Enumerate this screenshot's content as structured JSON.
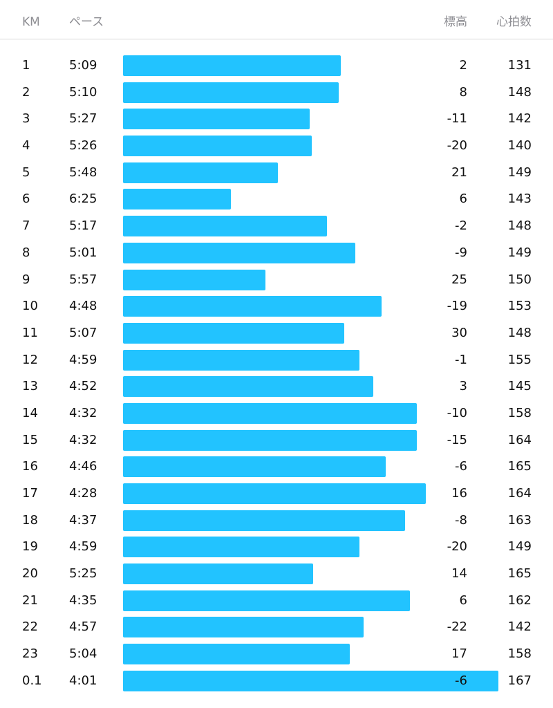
{
  "header": {
    "km": "KM",
    "pace": "ペース",
    "elevation": "標高",
    "heart_rate": "心拍数"
  },
  "bar_color": "#22c3ff",
  "splits": [
    {
      "km": "1",
      "pace": "5:09",
      "elevation": "2",
      "hr": "131"
    },
    {
      "km": "2",
      "pace": "5:10",
      "elevation": "8",
      "hr": "148"
    },
    {
      "km": "3",
      "pace": "5:27",
      "elevation": "-11",
      "hr": "142"
    },
    {
      "km": "4",
      "pace": "5:26",
      "elevation": "-20",
      "hr": "140"
    },
    {
      "km": "5",
      "pace": "5:48",
      "elevation": "21",
      "hr": "149"
    },
    {
      "km": "6",
      "pace": "6:25",
      "elevation": "6",
      "hr": "143"
    },
    {
      "km": "7",
      "pace": "5:17",
      "elevation": "-2",
      "hr": "148"
    },
    {
      "km": "8",
      "pace": "5:01",
      "elevation": "-9",
      "hr": "149"
    },
    {
      "km": "9",
      "pace": "5:57",
      "elevation": "25",
      "hr": "150"
    },
    {
      "km": "10",
      "pace": "4:48",
      "elevation": "-19",
      "hr": "153"
    },
    {
      "km": "11",
      "pace": "5:07",
      "elevation": "30",
      "hr": "148"
    },
    {
      "km": "12",
      "pace": "4:59",
      "elevation": "-1",
      "hr": "155"
    },
    {
      "km": "13",
      "pace": "4:52",
      "elevation": "3",
      "hr": "145"
    },
    {
      "km": "14",
      "pace": "4:32",
      "elevation": "-10",
      "hr": "158"
    },
    {
      "km": "15",
      "pace": "4:32",
      "elevation": "-15",
      "hr": "164"
    },
    {
      "km": "16",
      "pace": "4:46",
      "elevation": "-6",
      "hr": "165"
    },
    {
      "km": "17",
      "pace": "4:28",
      "elevation": "16",
      "hr": "164"
    },
    {
      "km": "18",
      "pace": "4:37",
      "elevation": "-8",
      "hr": "163"
    },
    {
      "km": "19",
      "pace": "4:59",
      "elevation": "-20",
      "hr": "149"
    },
    {
      "km": "20",
      "pace": "5:25",
      "elevation": "14",
      "hr": "165"
    },
    {
      "km": "21",
      "pace": "4:35",
      "elevation": "6",
      "hr": "162"
    },
    {
      "km": "22",
      "pace": "4:57",
      "elevation": "-22",
      "hr": "142"
    },
    {
      "km": "23",
      "pace": "5:04",
      "elevation": "17",
      "hr": "158"
    },
    {
      "km": "0.1",
      "pace": "4:01",
      "elevation": "-6",
      "hr": "167"
    }
  ]
}
